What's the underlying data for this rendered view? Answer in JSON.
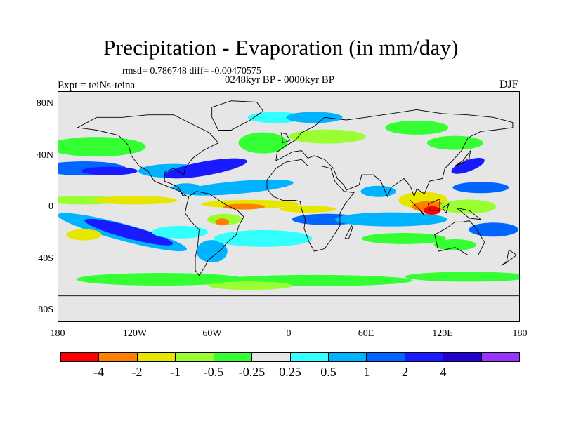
{
  "title": "Precipitation - Evaporation (in mm/day)",
  "stats_line": "rmsd= 0.786748 diff= -0.00470575",
  "period_line": "0248kyr BP - 0000kyr BP",
  "experiment_line": "Expt = teiNs-teina",
  "season": "DJF",
  "y_ticks": [
    "80N",
    "40N",
    "0",
    "40S",
    "80S"
  ],
  "x_ticks": [
    "180",
    "120W",
    "60W",
    "0",
    "60E",
    "120E",
    "180"
  ],
  "colorbar": {
    "colors": [
      "#ff0000",
      "#ff8000",
      "#e6e600",
      "#99ff33",
      "#33ff33",
      "#e6e6e6",
      "#33ffff",
      "#00b3ff",
      "#0066ff",
      "#1a1aff",
      "#2600cc",
      "#9933ff"
    ],
    "labels": [
      "-4",
      "-2",
      "-1",
      "-0.5",
      "-0.25",
      "0.25",
      "0.5",
      "1",
      "2",
      "4"
    ]
  },
  "chart_data": {
    "type": "heatmap",
    "title": "Precipitation - Evaporation (in mm/day)",
    "subtitle": "0248kyr BP - 0000kyr BP",
    "x_range": [
      -180,
      180
    ],
    "y_range": [
      -90,
      90
    ],
    "levels": [
      -4,
      -2,
      -1,
      -0.5,
      -0.25,
      0.25,
      0.5,
      1,
      2,
      4
    ],
    "regions": [
      {
        "lon": 110,
        "lat": 0,
        "value": -4
      },
      {
        "lon": 100,
        "lat": 5,
        "value": -2
      },
      {
        "lon": -40,
        "lat": 2,
        "value": -1
      },
      {
        "lon": -120,
        "lat": -20,
        "value": 2
      },
      {
        "lon": -60,
        "lat": 25,
        "value": 2
      },
      {
        "lon": 30,
        "lat": -8,
        "value": 1
      },
      {
        "lon": -20,
        "lat": 55,
        "value": -0.5
      },
      {
        "lon": 60,
        "lat": -60,
        "value": -0.25
      }
    ]
  }
}
